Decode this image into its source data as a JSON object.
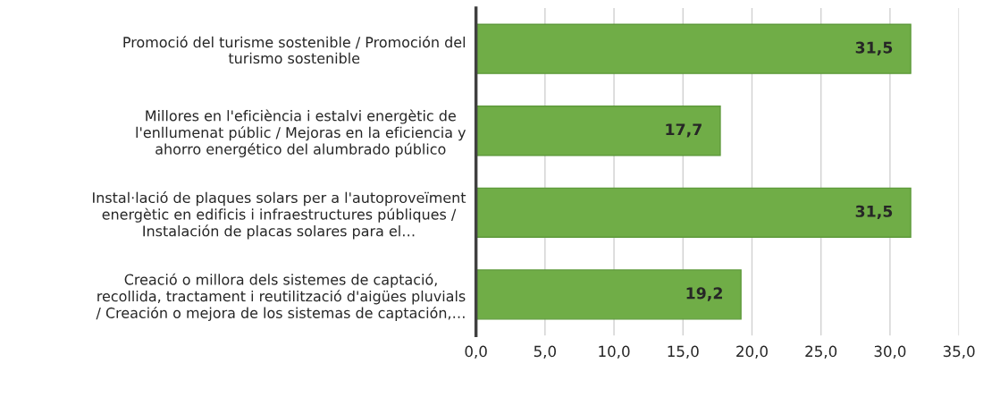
{
  "chart_data": {
    "type": "bar",
    "orientation": "horizontal",
    "categories": [
      "Promoció del turisme sostenible / Promoción del\nturismo sostenible",
      "Millores en l'eficiència i estalvi energètic de\nl'enllumenat públic / Mejoras en la eficiencia y\nahorro energético del alumbrado público",
      "Instal·lació de plaques solars per a l'autoproveïment\nenergètic en edificis i infraestructures públiques /\nInstalación de placas solares para el…",
      "Creació o millora dels sistemes de captació,\nrecollida, tractament i reutilització d'aigües pluvials\n/ Creación o mejora de los sistemas de captación,…"
    ],
    "values": [
      31.5,
      17.7,
      31.5,
      19.2
    ],
    "value_labels": [
      "31,5",
      "17,7",
      "31,5",
      "19,2"
    ],
    "color": "#70ad47",
    "xlim": [
      0,
      35
    ],
    "xticks": [
      {
        "value": 0,
        "label": "0,0"
      },
      {
        "value": 5,
        "label": "5,0"
      },
      {
        "value": 10,
        "label": "10,0"
      },
      {
        "value": 15,
        "label": "15,0"
      },
      {
        "value": 20,
        "label": "20,0"
      },
      {
        "value": 25,
        "label": "25,0"
      },
      {
        "value": 30,
        "label": "30,0"
      },
      {
        "value": 35,
        "label": "35,0"
      }
    ],
    "grid": "x",
    "legend": false
  }
}
